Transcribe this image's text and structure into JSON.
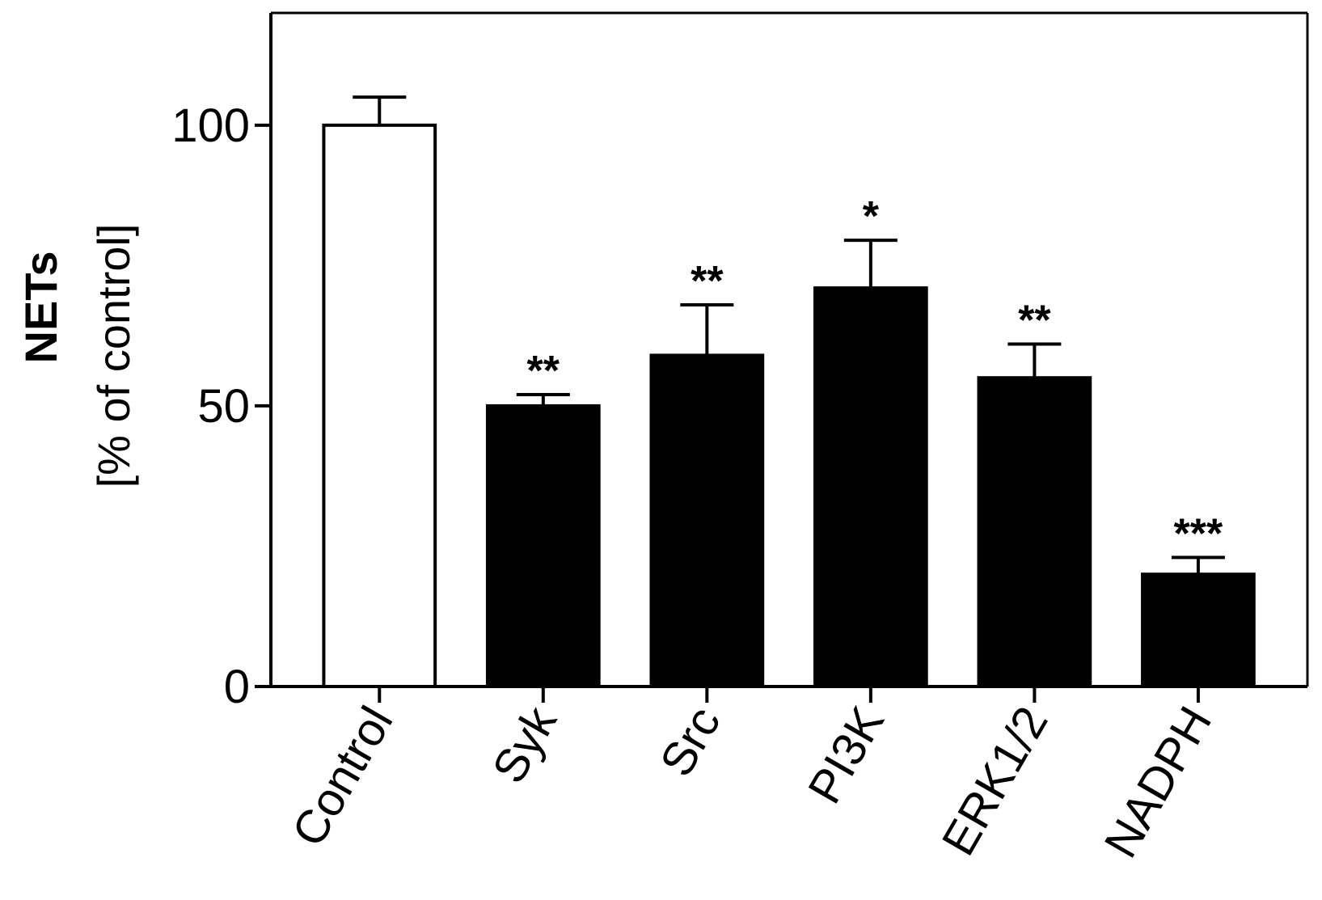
{
  "chart_data": {
    "type": "bar",
    "y_label": "NETs",
    "y_label_sub": "[% of control]",
    "categories": [
      "Control",
      "Syk",
      "Src",
      "PI3K",
      "ERK1/2",
      "NADPH"
    ],
    "values": [
      100,
      50,
      59,
      71,
      55,
      20
    ],
    "errors": [
      5,
      2,
      9,
      8.5,
      6,
      3
    ],
    "annotations": [
      null,
      "**",
      "**",
      "*",
      "**",
      "***"
    ],
    "colors": [
      "#ffffff",
      "#000000",
      "#000000",
      "#000000",
      "#000000",
      "#000000"
    ],
    "ylim": [
      0,
      120
    ],
    "yticks": [
      0,
      50,
      100
    ],
    "grid": false
  }
}
